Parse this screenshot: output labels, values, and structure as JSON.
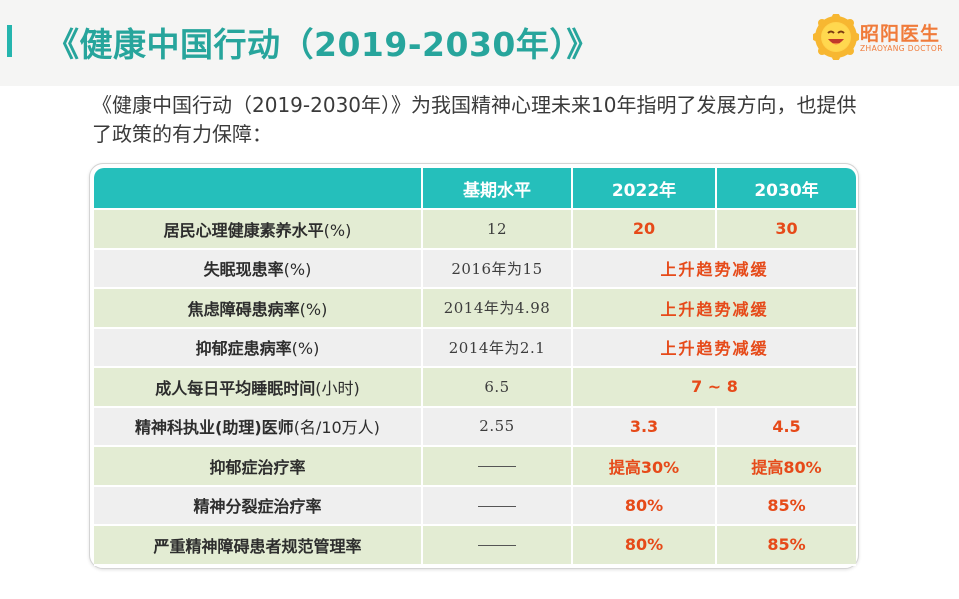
{
  "header": {
    "title": "《健康中国行动（2019-2030年）》",
    "logo_name": "昭阳医生",
    "logo_en": "ZHAOYANG DOCTOR"
  },
  "intro": "《健康中国行动（2019-2030年）》为我国精神心理未来10年指明了发展方向，也提供了政策的有力保障：",
  "table": {
    "headers": [
      "",
      "基期水平",
      "2022年",
      "2030年"
    ],
    "rows": [
      {
        "indicator": "居民心理健康素养水平",
        "unit": "(%)",
        "base": "12",
        "y2022": "20",
        "y2030": "30",
        "merged": false
      },
      {
        "indicator": "失眠现患率",
        "unit": "(%)",
        "base": "2016年为15",
        "target": "上升趋势减缓",
        "merged": true
      },
      {
        "indicator": "焦虑障碍患病率",
        "unit": "(%)",
        "base": "2014年为4.98",
        "target": "上升趋势减缓",
        "merged": true
      },
      {
        "indicator": "抑郁症患病率",
        "unit": "(%)",
        "base": "2014年为2.1",
        "target": "上升趋势减缓",
        "merged": true
      },
      {
        "indicator": "成人每日平均睡眠时间",
        "unit": "(小时)",
        "base": "6.5",
        "target": "7 ~ 8",
        "merged": true
      },
      {
        "indicator": "精神科执业(助理)医师",
        "unit": "(名/10万人)",
        "base": "2.55",
        "y2022": "3.3",
        "y2030": "4.5",
        "merged": false
      },
      {
        "indicator": "抑郁症治疗率",
        "unit": "",
        "base": "——",
        "y2022": "提高30%",
        "y2030": "提高80%",
        "merged": false
      },
      {
        "indicator": "精神分裂症治疗率",
        "unit": "",
        "base": "——",
        "y2022": "80%",
        "y2030": "85%",
        "merged": false
      },
      {
        "indicator": "严重精神障碍患者规范管理率",
        "unit": "",
        "base": "——",
        "y2022": "80%",
        "y2030": "85%",
        "merged": false
      }
    ]
  },
  "colors": {
    "accent": "#25b5ae",
    "header_bg": "#25bfbb",
    "row_green": "#e3ecd3",
    "row_grey": "#efefef",
    "highlight": "#e64a19"
  }
}
